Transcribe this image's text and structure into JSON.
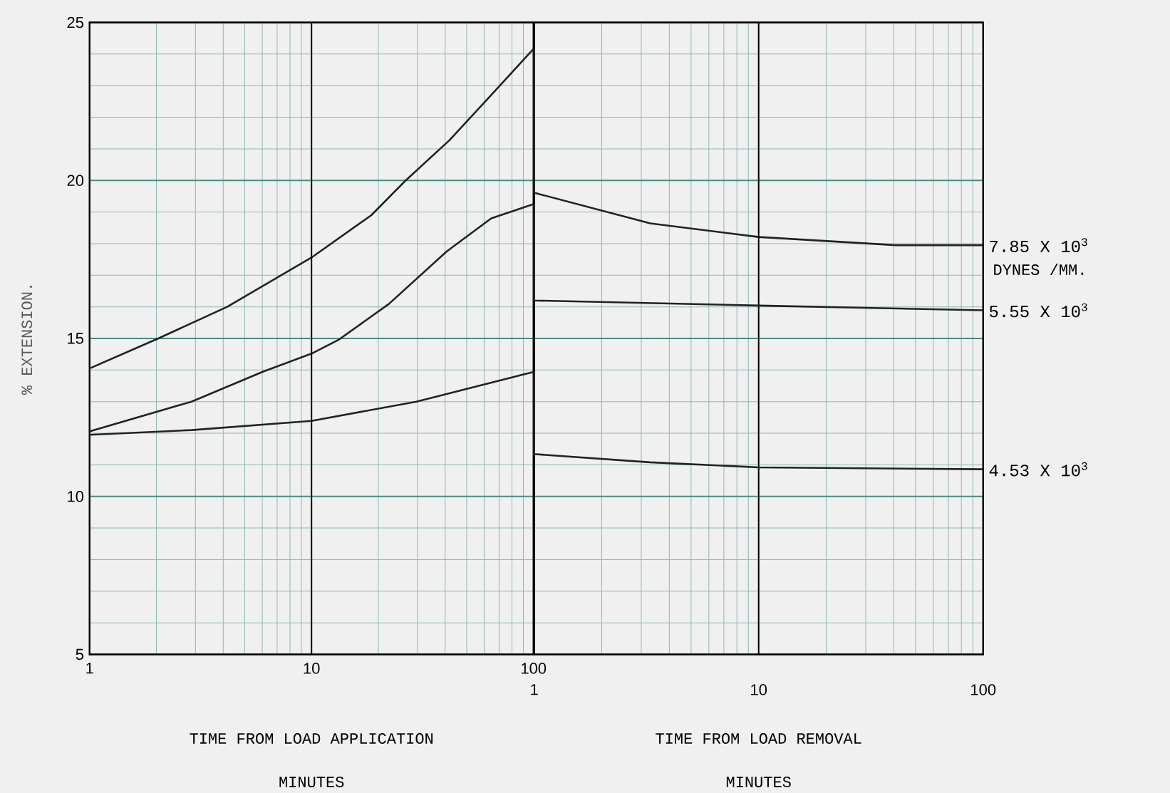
{
  "chart_data": [
    {
      "type": "line",
      "xlabel": "TIME FROM LOAD APPLICATION",
      "ylabel": "% EXTENSION.",
      "log": "x",
      "grid": true,
      "xlim": [
        1,
        100
      ],
      "xticks": [
        1,
        {
          "value": 2,
          "label": null
        },
        {
          "value": 3,
          "label": null
        },
        {
          "value": 4,
          "label": null
        },
        {
          "value": 5,
          "label": null
        },
        {
          "value": 6,
          "label": null
        },
        {
          "value": 7,
          "label": null
        },
        {
          "value": 8,
          "label": null
        },
        {
          "value": 9,
          "label": null
        },
        10,
        {
          "value": 20,
          "label": null
        },
        {
          "value": 30,
          "label": null
        },
        {
          "value": 40,
          "label": null
        },
        {
          "value": 50,
          "label": null
        },
        {
          "value": 60,
          "label": null
        },
        {
          "value": 70,
          "label": null
        },
        {
          "value": 80,
          "label": null
        },
        {
          "value": 90,
          "label": null
        },
        100
      ],
      "ylim": [
        5,
        25
      ],
      "yticks": [
        5,
        10,
        15,
        20,
        25
      ],
      "annotations": [
        "MINUTES"
      ],
      "ref_lines": [
        {
          "axis": "x",
          "value": 10,
          "color": "#000000"
        }
      ],
      "series": [
        {
          "color": "#222222",
          "x": [
            1,
            2.04,
            4.17,
            10,
            18.6,
            26.3,
            41.8,
            64.5,
            100
          ],
          "values": [
            14.05,
            15.0,
            16.0,
            17.56,
            18.9,
            19.97,
            21.27,
            22.7,
            24.16
          ]
        },
        {
          "color": "#222222",
          "x": [
            1,
            2.88,
            6.06,
            10,
            13.2,
            22.3,
            40.6,
            64.5,
            100
          ],
          "values": [
            12.06,
            13.0,
            13.95,
            14.52,
            14.95,
            16.09,
            17.75,
            18.8,
            19.25
          ]
        },
        {
          "color": "#222222",
          "x": [
            1,
            2.88,
            10,
            29.7,
            100
          ],
          "values": [
            11.95,
            12.1,
            12.39,
            13.0,
            13.94
          ]
        }
      ]
    },
    {
      "type": "line",
      "xlabel": "TIME FROM LOAD REMOVAL",
      "log": "x",
      "grid": true,
      "tick_labels": "x",
      "xlim": [
        1,
        100
      ],
      "xticks": [
        1,
        {
          "value": 2,
          "label": null
        },
        {
          "value": 3,
          "label": null
        },
        {
          "value": 4,
          "label": null
        },
        {
          "value": 5,
          "label": null
        },
        {
          "value": 6,
          "label": null
        },
        {
          "value": 7,
          "label": null
        },
        {
          "value": 8,
          "label": null
        },
        {
          "value": 9,
          "label": null
        },
        10,
        {
          "value": 20,
          "label": null
        },
        {
          "value": 30,
          "label": null
        },
        {
          "value": 40,
          "label": null
        },
        {
          "value": 50,
          "label": null
        },
        {
          "value": 60,
          "label": null
        },
        {
          "value": 70,
          "label": null
        },
        {
          "value": 80,
          "label": null
        },
        {
          "value": 90,
          "label": null
        },
        100
      ],
      "ylim": [
        5,
        25
      ],
      "yticks": [
        5,
        10,
        15,
        20,
        25
      ],
      "ref_lines": [
        {
          "axis": "x",
          "value": 10,
          "color": "#000000"
        }
      ],
      "annotations": [
        "MINUTES",
        {
          "text": "DYNES /MM.",
          "x": 100,
          "y": 17.95
        }
      ],
      "series": [
        {
          "name": "7.85 X 10$^{3}$",
          "color": "#222222",
          "x": [
            1,
            1,
            3.29,
            10,
            41,
            100
          ],
          "values": [
            24.16,
            19.61,
            18.64,
            18.21,
            17.95,
            17.95
          ]
        },
        {
          "name": "5.55 X 10$^{3}$",
          "color": "#222222",
          "x": [
            1,
            1,
            10,
            100
          ],
          "values": [
            19.25,
            16.2,
            16.04,
            15.89
          ]
        },
        {
          "name": "4.53 X 10$^{3}$",
          "color": "#222222",
          "x": [
            1,
            1,
            3.29,
            10,
            100
          ],
          "values": [
            13.94,
            11.34,
            11.08,
            10.92,
            10.86
          ]
        }
      ]
    }
  ]
}
